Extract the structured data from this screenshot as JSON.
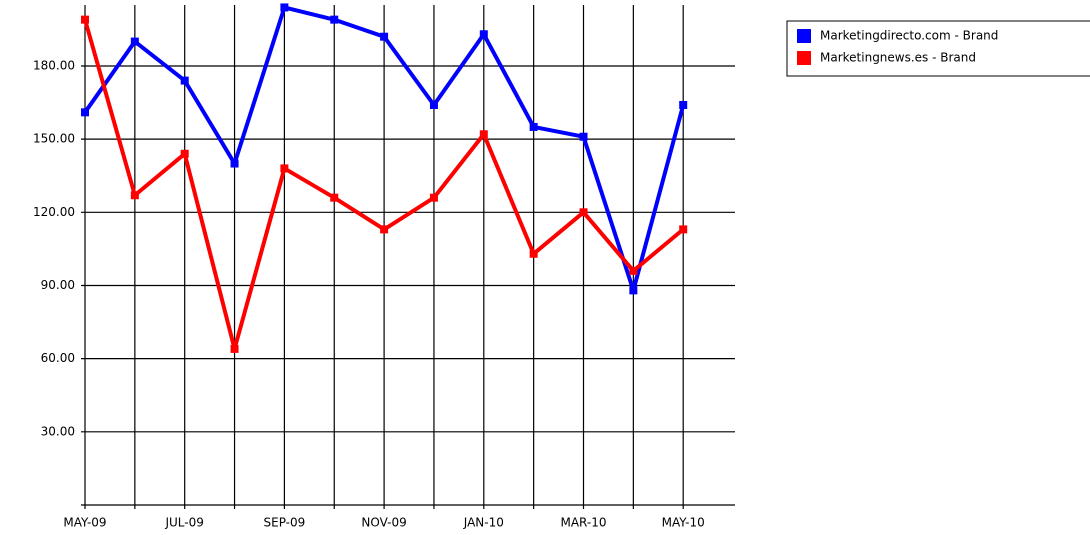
{
  "chart_data": {
    "type": "line",
    "categories": [
      "MAY-09",
      null,
      "JUL-09",
      null,
      "SEP-09",
      null,
      "NOV-09",
      null,
      "JAN-10",
      null,
      "MAR-10",
      null,
      "MAY-10"
    ],
    "series": [
      {
        "name": "Marketingdirecto.com - Brand",
        "color": "#0000ff",
        "values": [
          161,
          190,
          174,
          140,
          204,
          199,
          192,
          164,
          193,
          155,
          151,
          88,
          164
        ]
      },
      {
        "name": "Marketingnews.es - Brand",
        "color": "#ff0000",
        "values": [
          199,
          127,
          144,
          64,
          138,
          126,
          113,
          126,
          152,
          103,
          120,
          96,
          113
        ]
      }
    ],
    "ylim": [
      0,
      205
    ],
    "yticks": [
      {
        "value": 30,
        "label": "30.00"
      },
      {
        "value": 60,
        "label": "60.00"
      },
      {
        "value": 90,
        "label": "90.00"
      },
      {
        "value": 120,
        "label": "120.00"
      },
      {
        "value": 150,
        "label": "150.00"
      },
      {
        "value": 180,
        "label": "180.00"
      }
    ],
    "grid": true
  }
}
